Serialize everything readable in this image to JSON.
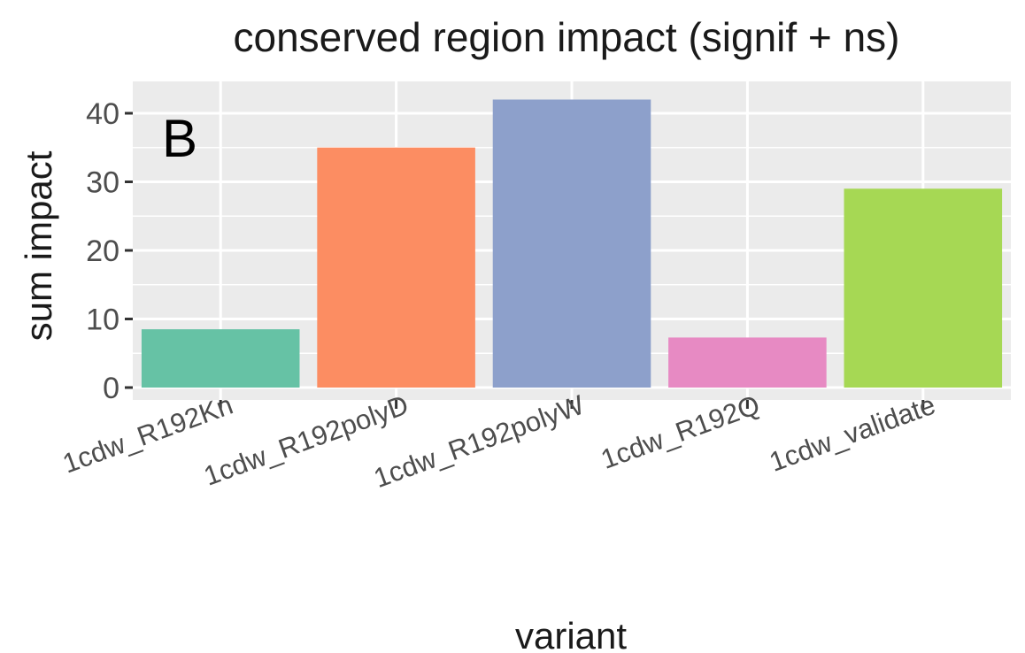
{
  "panel_label": "B",
  "chart_data": {
    "type": "bar",
    "title": "conserved region impact (signif + ns)",
    "xlabel": "variant",
    "ylabel": "sum impact",
    "categories": [
      "1cdw_R192Kn",
      "1cdw_R192polyD",
      "1cdw_R192polyW",
      "1cdw_R192Q",
      "1cdw_validate"
    ],
    "values": [
      8.5,
      35,
      42,
      7.3,
      29
    ],
    "colors": [
      "#66c2a5",
      "#fc8d62",
      "#8da0cb",
      "#e78ac3",
      "#a6d854"
    ],
    "ylim": [
      -2,
      44
    ],
    "yticks": [
      0,
      10,
      20,
      30,
      40
    ],
    "panel_background": "#ebebeb",
    "grid": true,
    "legend": "none"
  }
}
